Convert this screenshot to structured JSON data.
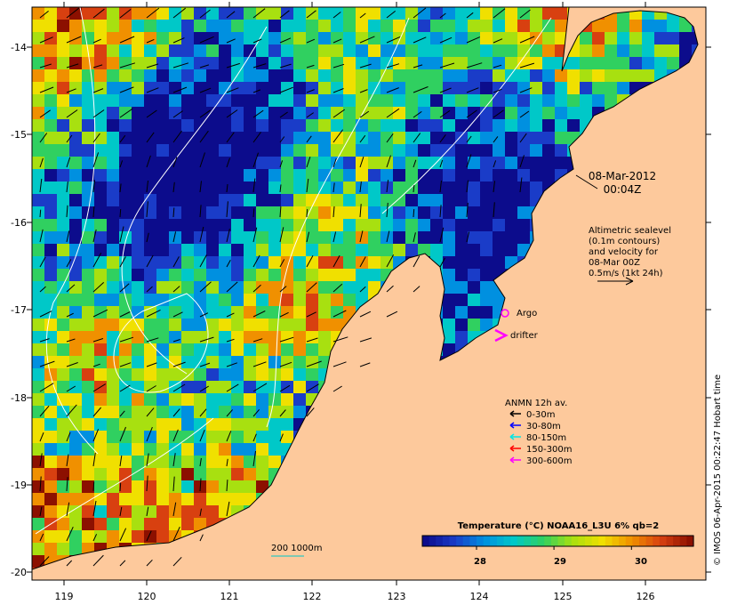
{
  "map": {
    "datetime": {
      "date": "08-Mar-2012",
      "time": "00:04Z"
    },
    "lon_ticks": [
      "119",
      "120",
      "121",
      "122",
      "123",
      "124",
      "125",
      "126"
    ],
    "lat_ticks": [
      "-14",
      "-15",
      "-16",
      "-17",
      "-18",
      "-19",
      "-20"
    ],
    "altimetry_note": [
      "Altimetric sealevel",
      "(0.1m contours)",
      "and velocity for",
      "08-Mar 00Z",
      "0.5m/s (1kt 24h)"
    ],
    "legend": {
      "argo_label": "Argo",
      "drifter_label": "drifter",
      "anmn_title": "ANMN 12h av.",
      "depth_items": [
        {
          "label": "0-30m",
          "color": "#000000"
        },
        {
          "label": "30-80m",
          "color": "#0000ff"
        },
        {
          "label": "80-150m",
          "color": "#00e5e5"
        },
        {
          "label": "150-300m",
          "color": "#ff0000"
        },
        {
          "label": "300-600m",
          "color": "#ff00ff"
        }
      ],
      "isobath_label": "200  1000m"
    },
    "colorbar": {
      "title": "Temperature (°C) NOAA16_L3U 6% qb=2",
      "ticks": [
        "28",
        "29",
        "30"
      ],
      "tick_values": [
        28,
        29,
        30
      ],
      "range": [
        27.3,
        30.8
      ],
      "colors": [
        "#0c0c8c",
        "#1a3cc8",
        "#0090e0",
        "#00c8c8",
        "#30d060",
        "#a8e010",
        "#f0e000",
        "#f09000",
        "#d84010",
        "#8c1000"
      ]
    },
    "credit": "© IMOS 06-Apr-2015 00:22:47 Hobart time",
    "palette": {
      "land": "#fdc99c",
      "coast": "#000000",
      "contour": "#ffffff",
      "isobath": "#00c8c8"
    },
    "axis_range": {
      "lon": [
        118.6,
        126.7
      ],
      "lat": [
        -20.1,
        -13.6
      ]
    }
  }
}
